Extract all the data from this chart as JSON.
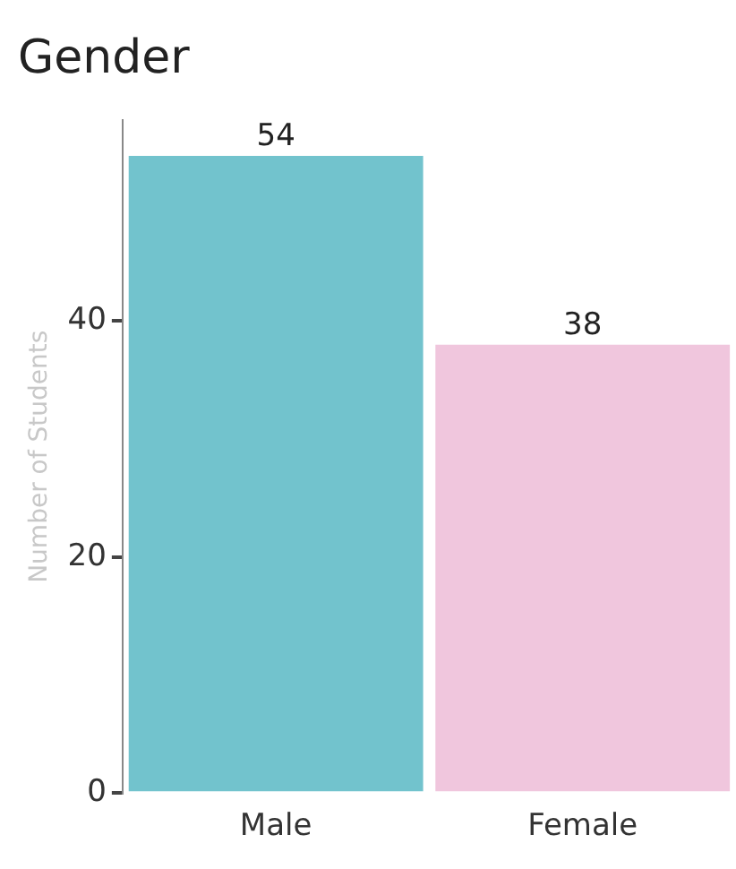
{
  "chart_data": {
    "type": "bar",
    "title": "Gender",
    "ylabel": "Number of Students",
    "categories": [
      "Male",
      "Female"
    ],
    "colors": [
      "#72c3cd",
      "#f0c6dd"
    ],
    "values": [
      54,
      38
    ],
    "ylim": [
      0,
      57
    ],
    "yticks": [
      0,
      20,
      40
    ],
    "grid": false,
    "legend": false,
    "data_labels": true
  }
}
